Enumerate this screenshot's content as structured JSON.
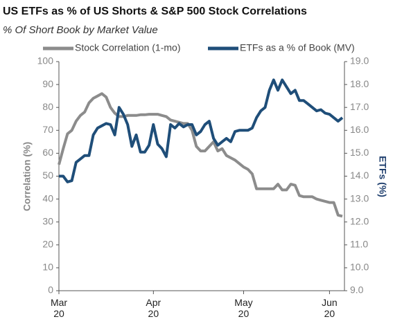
{
  "chart_data": {
    "type": "line",
    "title": "US ETFs as % of US Shorts & S&P 500 Stock Correlations",
    "subtitle": "% Of Short Book by Market Value",
    "y_label": "Correlation (%)",
    "y2_label": "ETFs (%)",
    "categories": [
      "Mar 20",
      null,
      null,
      null,
      null,
      null,
      null,
      null,
      null,
      null,
      null,
      null,
      null,
      null,
      null,
      null,
      null,
      null,
      null,
      null,
      null,
      null,
      "Apr 20",
      null,
      null,
      null,
      null,
      null,
      null,
      null,
      null,
      null,
      null,
      null,
      null,
      null,
      null,
      null,
      null,
      null,
      null,
      null,
      null,
      "May 20",
      null,
      null,
      null,
      null,
      null,
      null,
      null,
      null,
      null,
      null,
      null,
      null,
      null,
      null,
      null,
      null,
      null,
      null,
      null,
      "Jun 20",
      null,
      null,
      null
    ],
    "series": [
      {
        "name": "Stock Correlation (1-mo)",
        "color": "#8c8c8c",
        "values": [
          55,
          62,
          68.5,
          70,
          74,
          76.5,
          78,
          82,
          84,
          85,
          86,
          84.5,
          80,
          77.5,
          76,
          76,
          76.5,
          76.5,
          76.5,
          76.8,
          76.8,
          77,
          77,
          77,
          76.5,
          76,
          74.5,
          74,
          73.5,
          73,
          73,
          70,
          63,
          61,
          61,
          63,
          65,
          61,
          62,
          59,
          58,
          57,
          55.5,
          54,
          53,
          51,
          44.5,
          44.5,
          44.5,
          44.5,
          44.5,
          46.5,
          44,
          44,
          46.5,
          46,
          41.5,
          41,
          41,
          41,
          40,
          39.5,
          39,
          38.5,
          38.5,
          33,
          32.5
        ]
      },
      {
        "name": "ETFs as a % of Book (MV)",
        "color": "#1f4e79",
        "axis": "y2",
        "values": [
          14.0,
          14.0,
          13.75,
          13.8,
          14.6,
          14.75,
          14.9,
          14.9,
          15.8,
          16.1,
          16.2,
          16.3,
          16.25,
          15.8,
          17.0,
          16.7,
          16.25,
          15.3,
          15.8,
          15.05,
          15.05,
          15.35,
          16.25,
          15.4,
          15.2,
          14.85,
          16.25,
          16.1,
          16.3,
          16.15,
          16.25,
          16.25,
          15.8,
          15.95,
          16.25,
          16.4,
          15.65,
          15.35,
          15.5,
          15.65,
          15.5,
          15.95,
          16.0,
          16.0,
          16.0,
          16.1,
          16.55,
          16.85,
          17.0,
          17.75,
          18.2,
          17.75,
          18.2,
          17.9,
          17.6,
          17.75,
          17.3,
          17.3,
          17.15,
          17.0,
          16.85,
          16.9,
          16.75,
          16.7,
          16.55,
          16.4,
          16.55
        ]
      }
    ],
    "ylim": [
      0,
      100
    ],
    "yticks": [
      0,
      10,
      20,
      30,
      40,
      50,
      60,
      70,
      80,
      90,
      100
    ],
    "y2lim": [
      9,
      19
    ],
    "y2ticks": [
      {
        "value": 9,
        "label": "9.0"
      },
      {
        "value": 10,
        "label": "10.0"
      },
      {
        "value": 11,
        "label": "11.0"
      },
      {
        "value": 12,
        "label": "12.0"
      },
      {
        "value": 13,
        "label": "13.0"
      },
      {
        "value": 14,
        "label": "14.0"
      },
      {
        "value": 15,
        "label": "15.0"
      },
      {
        "value": 16,
        "label": "16.0"
      },
      {
        "value": 17,
        "label": "17.0"
      },
      {
        "value": 18,
        "label": "18.0"
      },
      {
        "value": 19,
        "label": "19.0"
      }
    ],
    "grid": false,
    "legend": "top"
  }
}
